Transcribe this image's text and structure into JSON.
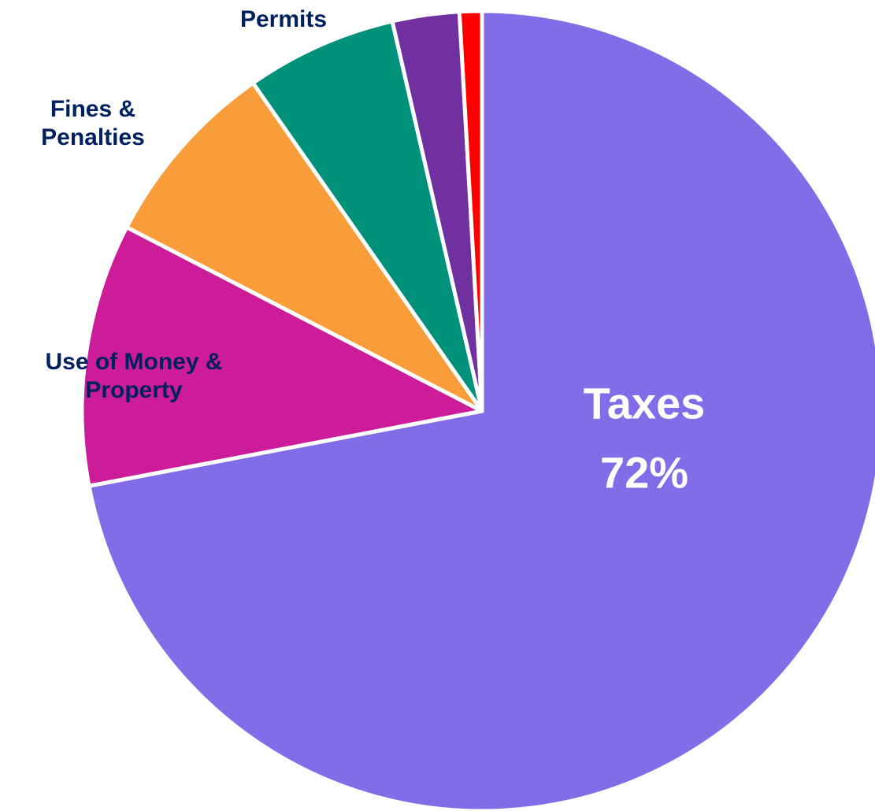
{
  "chart_data": {
    "type": "pie",
    "categories": [
      "Taxes",
      "Use of Money & Property",
      "Fines & Penalties",
      "Permits",
      null,
      null
    ],
    "values": [
      72,
      10.6,
      7.7,
      6.1,
      2.7,
      0.9
    ],
    "value_labels": [
      "72%",
      null,
      null,
      null,
      null,
      null
    ],
    "colors": [
      "#836ce8",
      "#cc1c9a",
      "#f99d3a",
      "#00917b",
      "#7030a0",
      "#ff0000"
    ]
  }
}
